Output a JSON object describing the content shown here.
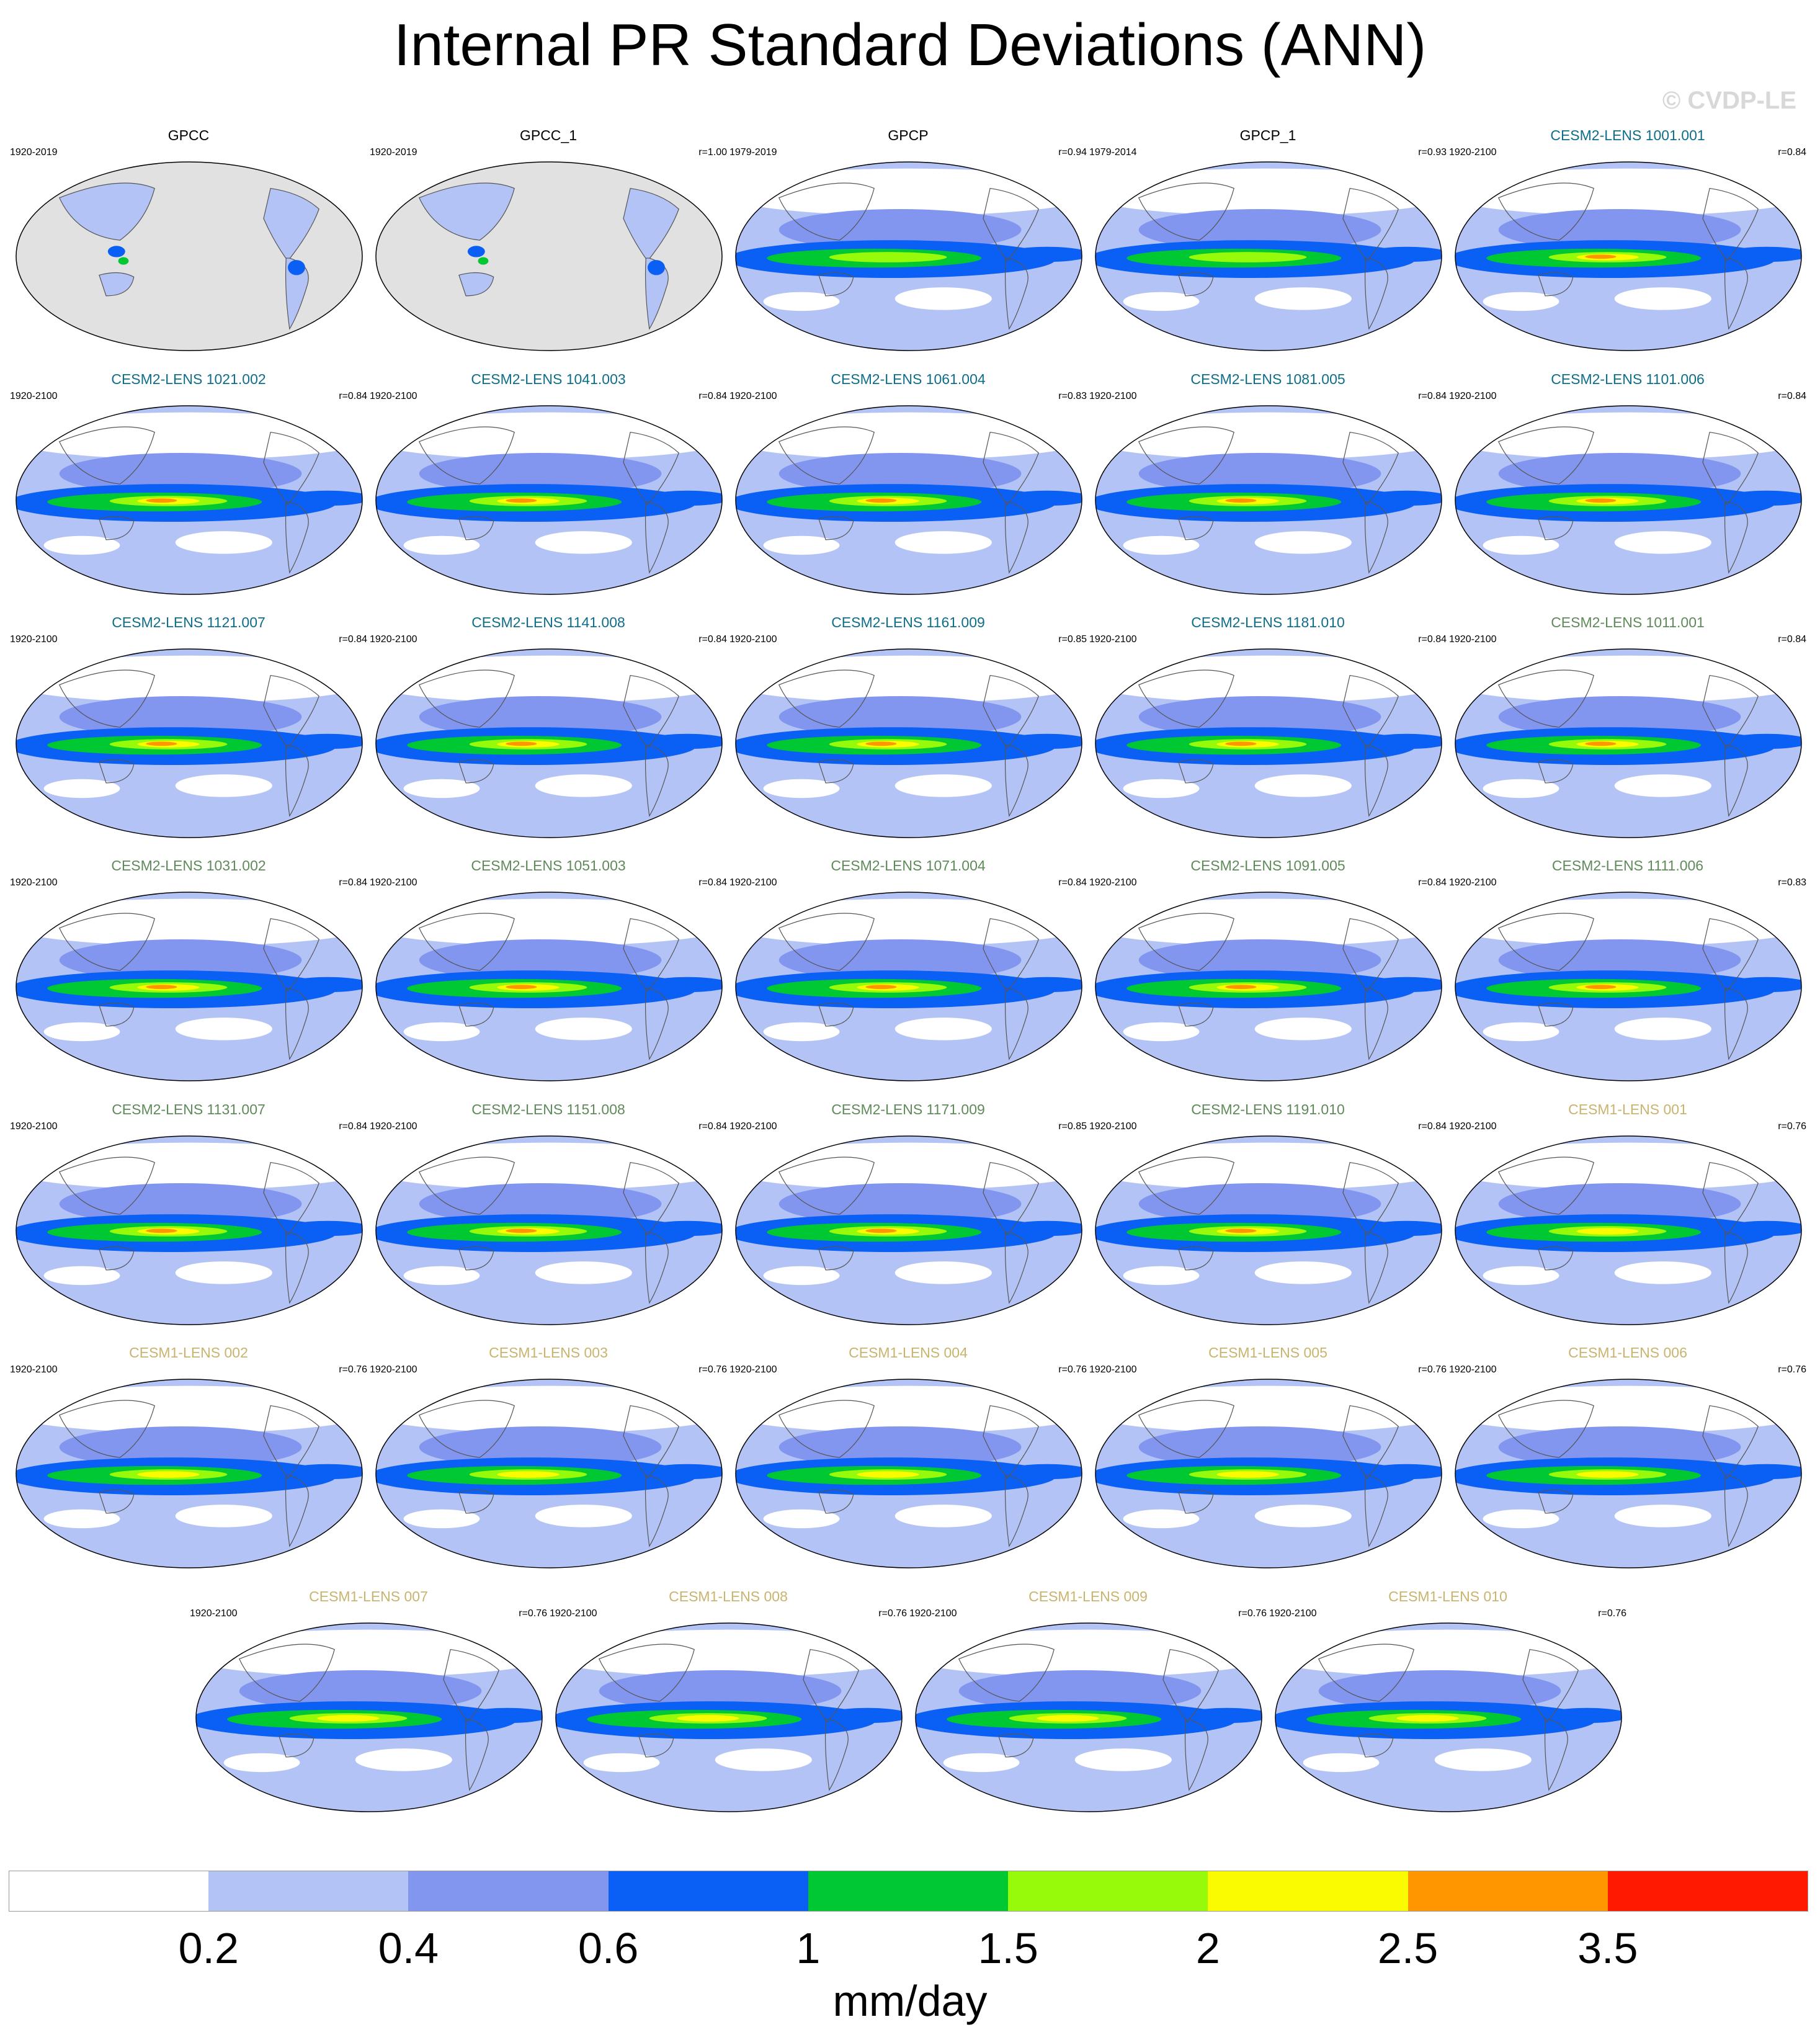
{
  "title": "Internal PR Standard Deviations (ANN)",
  "watermark": "© CVDP-LE",
  "colors": {
    "levels": [
      "#ffffff",
      "#b4c3f5",
      "#8296f0",
      "#0a5ff5",
      "#00c832",
      "#96fa0a",
      "#fafa00",
      "#ff9600",
      "#ff1900"
    ],
    "land_missing": "#e1e1e1",
    "group_obs": "#000000",
    "group_cesm2_a": "#0e6e8a",
    "group_cesm2_b": "#5f8a5a",
    "group_cesm1": "#c8b46e"
  },
  "chart_data": {
    "type": "heatmap",
    "projection": "robinson",
    "panels": [
      {
        "title": "GPCC",
        "years": "1920-2019",
        "r": "",
        "group": "obs",
        "land_only": true
      },
      {
        "title": "GPCC_1",
        "years": "1920-2019",
        "r": "r=1.00",
        "group": "obs",
        "land_only": true
      },
      {
        "title": "GPCP",
        "years": "1979-2019",
        "r": "r=0.94",
        "group": "obs"
      },
      {
        "title": "GPCP_1",
        "years": "1979-2014",
        "r": "r=0.93",
        "group": "obs"
      },
      {
        "title": "CESM2-LENS 1001.001",
        "years": "1920-2100",
        "r": "r=0.84",
        "group": "cesm2_a"
      },
      {
        "title": "CESM2-LENS 1021.002",
        "years": "1920-2100",
        "r": "r=0.84",
        "group": "cesm2_a"
      },
      {
        "title": "CESM2-LENS 1041.003",
        "years": "1920-2100",
        "r": "r=0.84",
        "group": "cesm2_a"
      },
      {
        "title": "CESM2-LENS 1061.004",
        "years": "1920-2100",
        "r": "r=0.83",
        "group": "cesm2_a"
      },
      {
        "title": "CESM2-LENS 1081.005",
        "years": "1920-2100",
        "r": "r=0.84",
        "group": "cesm2_a"
      },
      {
        "title": "CESM2-LENS 1101.006",
        "years": "1920-2100",
        "r": "r=0.84",
        "group": "cesm2_a"
      },
      {
        "title": "CESM2-LENS 1121.007",
        "years": "1920-2100",
        "r": "r=0.84",
        "group": "cesm2_a"
      },
      {
        "title": "CESM2-LENS 1141.008",
        "years": "1920-2100",
        "r": "r=0.84",
        "group": "cesm2_a"
      },
      {
        "title": "CESM2-LENS 1161.009",
        "years": "1920-2100",
        "r": "r=0.85",
        "group": "cesm2_a"
      },
      {
        "title": "CESM2-LENS 1181.010",
        "years": "1920-2100",
        "r": "r=0.84",
        "group": "cesm2_a"
      },
      {
        "title": "CESM2-LENS 1011.001",
        "years": "1920-2100",
        "r": "r=0.84",
        "group": "cesm2_b"
      },
      {
        "title": "CESM2-LENS 1031.002",
        "years": "1920-2100",
        "r": "r=0.84",
        "group": "cesm2_b"
      },
      {
        "title": "CESM2-LENS 1051.003",
        "years": "1920-2100",
        "r": "r=0.84",
        "group": "cesm2_b"
      },
      {
        "title": "CESM2-LENS 1071.004",
        "years": "1920-2100",
        "r": "r=0.84",
        "group": "cesm2_b"
      },
      {
        "title": "CESM2-LENS 1091.005",
        "years": "1920-2100",
        "r": "r=0.84",
        "group": "cesm2_b"
      },
      {
        "title": "CESM2-LENS 1111.006",
        "years": "1920-2100",
        "r": "r=0.83",
        "group": "cesm2_b"
      },
      {
        "title": "CESM2-LENS 1131.007",
        "years": "1920-2100",
        "r": "r=0.84",
        "group": "cesm2_b"
      },
      {
        "title": "CESM2-LENS 1151.008",
        "years": "1920-2100",
        "r": "r=0.84",
        "group": "cesm2_b"
      },
      {
        "title": "CESM2-LENS 1171.009",
        "years": "1920-2100",
        "r": "r=0.85",
        "group": "cesm2_b"
      },
      {
        "title": "CESM2-LENS 1191.010",
        "years": "1920-2100",
        "r": "r=0.84",
        "group": "cesm2_b"
      },
      {
        "title": "CESM1-LENS 001",
        "years": "1920-2100",
        "r": "r=0.76",
        "group": "cesm1"
      },
      {
        "title": "CESM1-LENS 002",
        "years": "1920-2100",
        "r": "r=0.76",
        "group": "cesm1"
      },
      {
        "title": "CESM1-LENS 003",
        "years": "1920-2100",
        "r": "r=0.76",
        "group": "cesm1"
      },
      {
        "title": "CESM1-LENS 004",
        "years": "1920-2100",
        "r": "r=0.76",
        "group": "cesm1"
      },
      {
        "title": "CESM1-LENS 005",
        "years": "1920-2100",
        "r": "r=0.76",
        "group": "cesm1"
      },
      {
        "title": "CESM1-LENS 006",
        "years": "1920-2100",
        "r": "r=0.76",
        "group": "cesm1"
      },
      {
        "title": "CESM1-LENS 007",
        "years": "1920-2100",
        "r": "r=0.76",
        "group": "cesm1"
      },
      {
        "title": "CESM1-LENS 008",
        "years": "1920-2100",
        "r": "r=0.76",
        "group": "cesm1"
      },
      {
        "title": "CESM1-LENS 009",
        "years": "1920-2100",
        "r": "r=0.76",
        "group": "cesm1"
      },
      {
        "title": "CESM1-LENS 010",
        "years": "1920-2100",
        "r": "r=0.76",
        "group": "cesm1"
      }
    ],
    "colorbar": {
      "levels": [
        0.2,
        0.4,
        0.6,
        1,
        1.5,
        2,
        2.5,
        3.5
      ],
      "labels": [
        "0.2",
        "0.4",
        "0.6",
        "1",
        "1.5",
        "2",
        "2.5",
        "3.5"
      ],
      "unit": "mm/day"
    }
  }
}
